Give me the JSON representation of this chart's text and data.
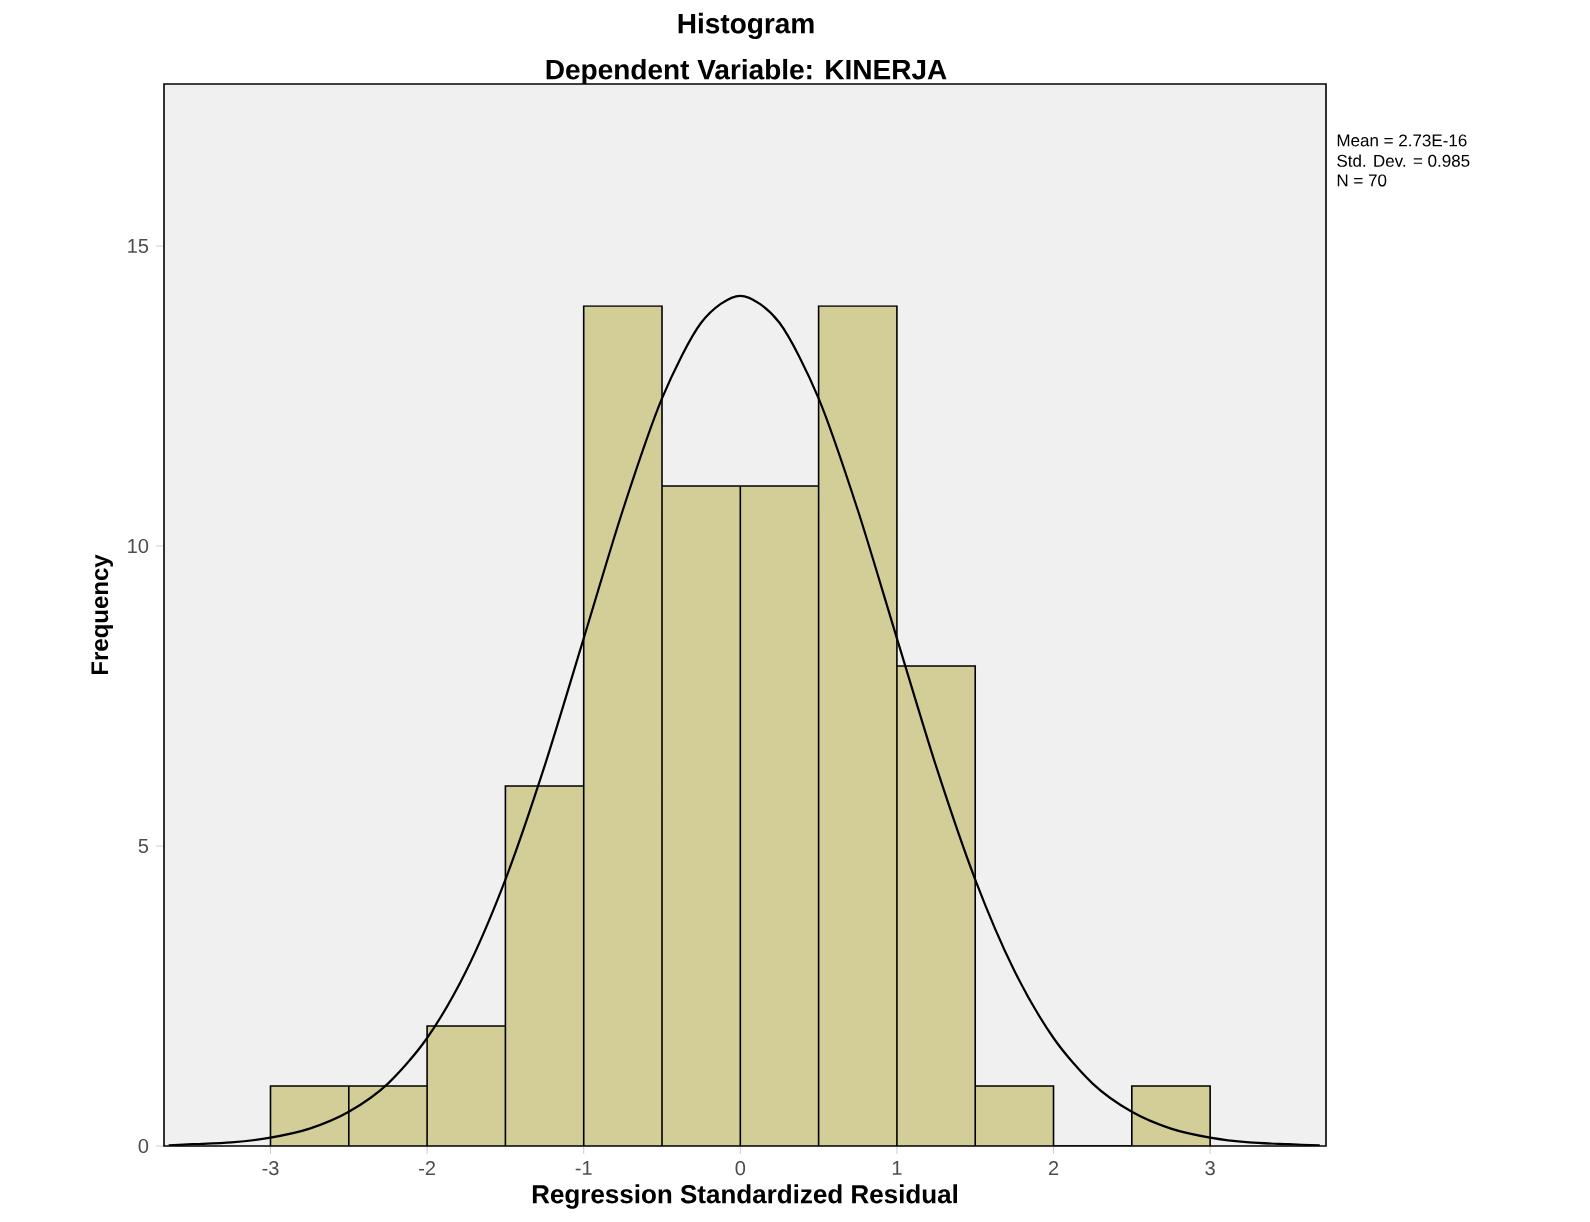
{
  "chart_data": {
    "type": "histogram",
    "title": "Histogram",
    "subtitle": "Dependent Variable: KINERJA",
    "xlabel": "Regression Standardized Residual",
    "ylabel": "Frequency",
    "bins": [
      -3,
      -2.5,
      -2,
      -1.5,
      -1,
      -0.5,
      0,
      0.5,
      1,
      1.5,
      2,
      2.5,
      3
    ],
    "values": [
      1,
      1,
      2,
      6,
      14,
      11,
      11,
      14,
      8,
      1,
      0,
      1
    ],
    "color": "#d3ce97",
    "series": [
      {
        "type": "line",
        "color": "#000000",
        "x": [
          -3.65,
          -3.5,
          -3.25,
          -3,
          -2.75,
          -2.5,
          -2.25,
          -2,
          -1.75,
          -1.5,
          -1.25,
          -1,
          -0.75,
          -0.5,
          -0.25,
          0,
          0.25,
          0.5,
          0.75,
          1,
          1.25,
          1.5,
          1.75,
          2,
          2.25,
          2.5,
          2.75,
          3,
          3.25,
          3.5,
          3.7
        ],
        "values": [
          0.01,
          0.03,
          0.06,
          0.14,
          0.29,
          0.57,
          1.04,
          1.8,
          2.92,
          4.44,
          6.33,
          8.46,
          10.6,
          12.46,
          13.72,
          14.17,
          13.72,
          12.46,
          10.6,
          8.46,
          6.33,
          4.44,
          2.92,
          1.8,
          1.04,
          0.57,
          0.29,
          0.14,
          0.06,
          0.03,
          0.01
        ]
      }
    ],
    "xlim": [
      -3.68,
      3.74
    ],
    "ylim": [
      0,
      17.7
    ],
    "xticks": [
      -3,
      -2,
      -1,
      0,
      1,
      2,
      3
    ],
    "yticks": [
      0,
      5,
      10,
      15
    ],
    "annotations": [
      "Mean = 2.73E-16",
      "Std. Dev. = 0.985",
      "N = 70"
    ]
  }
}
